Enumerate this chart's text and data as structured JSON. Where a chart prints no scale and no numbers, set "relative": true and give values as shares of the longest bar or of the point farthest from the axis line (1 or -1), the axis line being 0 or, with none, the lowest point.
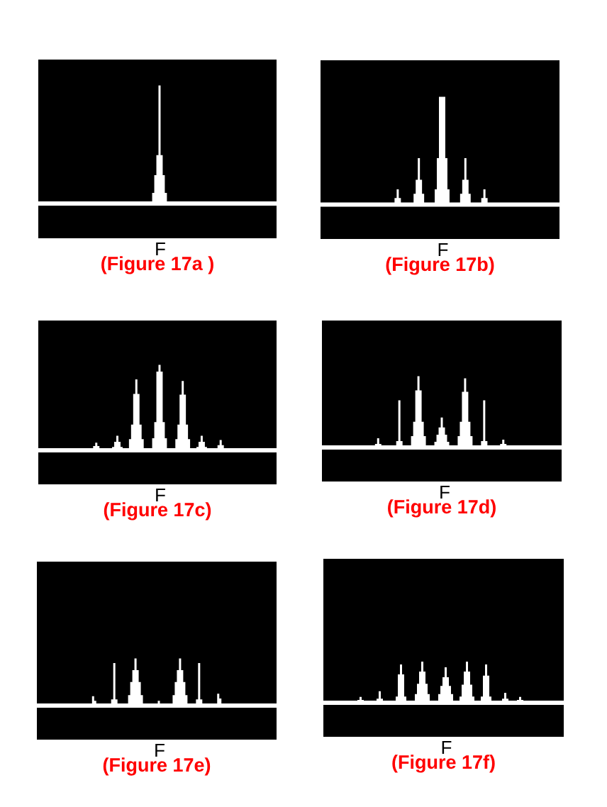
{
  "chart_data": [
    {
      "type": "area",
      "title": "(Figure 17a )",
      "xlabel": "F",
      "relative": true,
      "color": "#ffffff",
      "categories": [
        null,
        null,
        null,
        null,
        null,
        null,
        null,
        null,
        null,
        null,
        null,
        null,
        null,
        null,
        null,
        null,
        null,
        null,
        null,
        null,
        null,
        null,
        null,
        null,
        null,
        null,
        null,
        null,
        null,
        null,
        null,
        null,
        null,
        null,
        null,
        null,
        null,
        null,
        null,
        null,
        null,
        null,
        null,
        null,
        null,
        null,
        null,
        null,
        null,
        null,
        null,
        null,
        null,
        null,
        null,
        null,
        null,
        null,
        null,
        null,
        null,
        null,
        null,
        null,
        null,
        null,
        null,
        null,
        null,
        null,
        null,
        null,
        null,
        null,
        null,
        null,
        null,
        null,
        null,
        null,
        null,
        null,
        null,
        null,
        null,
        null,
        null,
        null,
        null,
        null,
        null,
        null,
        null,
        null,
        null,
        null,
        null,
        null,
        null,
        null,
        null,
        null,
        null,
        null,
        null,
        null,
        null,
        null,
        null,
        null,
        null,
        null,
        null
      ],
      "values": [
        0,
        0,
        0,
        0,
        0,
        0,
        0,
        0,
        0,
        0,
        0,
        0,
        0,
        0,
        0,
        0,
        0,
        0,
        0,
        0,
        0,
        0,
        0,
        0,
        0,
        0,
        0,
        0,
        0,
        0,
        0,
        0,
        0,
        0,
        0,
        0,
        0,
        0,
        0,
        0,
        0,
        0,
        0,
        0,
        0,
        0,
        0,
        0,
        0,
        0,
        0,
        0,
        0,
        0,
        0.09,
        0.24,
        0.41,
        1,
        0.41,
        0.24,
        0.09,
        0,
        0,
        0,
        0,
        0,
        0,
        0,
        0,
        0,
        0,
        0,
        0,
        0,
        0,
        0,
        0,
        0,
        0,
        0,
        0,
        0,
        0,
        0,
        0,
        0,
        0,
        0,
        0,
        0,
        0,
        0,
        0,
        0,
        0,
        0,
        0,
        0,
        0,
        0,
        0,
        0,
        0,
        0,
        0,
        0,
        0,
        0,
        0,
        0,
        0,
        0,
        0
      ]
    },
    {
      "type": "area",
      "title": "(Figure 17b)",
      "xlabel": "F",
      "relative": true,
      "color": "#ffffff",
      "categories": [
        null,
        null,
        null,
        null,
        null,
        null,
        null,
        null,
        null,
        null,
        null,
        null,
        null,
        null,
        null,
        null,
        null,
        null,
        null,
        null,
        null,
        null,
        null,
        null,
        null,
        null,
        null,
        null,
        null,
        null,
        null,
        null,
        null,
        null,
        null,
        null,
        null,
        null,
        null,
        null,
        null,
        null,
        null,
        null,
        null,
        null,
        null,
        null,
        null,
        null,
        null,
        null,
        null,
        null,
        null,
        null,
        null,
        null,
        null,
        null,
        null,
        null,
        null,
        null,
        null,
        null,
        null,
        null,
        null,
        null,
        null,
        null,
        null,
        null,
        null,
        null,
        null,
        null,
        null,
        null,
        null,
        null,
        null,
        null,
        null,
        null,
        null,
        null,
        null,
        null,
        null,
        null,
        null,
        null,
        null,
        null,
        null,
        null,
        null,
        null,
        null,
        null,
        null,
        null,
        null,
        null,
        null,
        null,
        null,
        null,
        null,
        null,
        null
      ],
      "values": [
        0,
        0,
        0,
        0,
        0,
        0,
        0,
        0,
        0,
        0,
        0,
        0,
        0,
        0,
        0,
        0,
        0,
        0,
        0,
        0,
        0,
        0,
        0,
        0,
        0,
        0,
        0,
        0,
        0,
        0,
        0,
        0,
        0,
        0,
        0,
        0.06,
        0.14,
        0.06,
        0,
        0,
        0,
        0,
        0,
        0,
        0.1,
        0.23,
        0.43,
        0.23,
        0.1,
        0,
        0,
        0,
        0,
        0,
        0.14,
        0.43,
        1,
        1,
        1,
        0.43,
        0.14,
        0,
        0,
        0,
        0,
        0,
        0.1,
        0.23,
        0.43,
        0.23,
        0.1,
        0,
        0,
        0,
        0,
        0,
        0.06,
        0.14,
        0.06,
        0,
        0,
        0,
        0,
        0,
        0,
        0,
        0,
        0,
        0,
        0,
        0,
        0,
        0,
        0,
        0,
        0,
        0,
        0,
        0,
        0,
        0,
        0,
        0,
        0,
        0,
        0,
        0,
        0,
        0,
        0,
        0,
        0,
        0
      ]
    },
    {
      "type": "area",
      "title": "(Figure 17c)",
      "xlabel": "F",
      "relative": true,
      "color": "#ffffff",
      "categories": [
        null,
        null,
        null,
        null,
        null,
        null,
        null,
        null,
        null,
        null,
        null,
        null,
        null,
        null,
        null,
        null,
        null,
        null,
        null,
        null,
        null,
        null,
        null,
        null,
        null,
        null,
        null,
        null,
        null,
        null,
        null,
        null,
        null,
        null,
        null,
        null,
        null,
        null,
        null,
        null,
        null,
        null,
        null,
        null,
        null,
        null,
        null,
        null,
        null,
        null,
        null,
        null,
        null,
        null,
        null,
        null,
        null,
        null,
        null,
        null,
        null,
        null,
        null,
        null,
        null,
        null,
        null,
        null,
        null,
        null,
        null,
        null,
        null,
        null,
        null,
        null,
        null,
        null,
        null,
        null,
        null,
        null,
        null,
        null,
        null,
        null,
        null,
        null,
        null,
        null,
        null,
        null,
        null,
        null,
        null,
        null,
        null,
        null,
        null,
        null,
        null,
        null,
        null,
        null,
        null,
        null,
        null,
        null,
        null,
        null,
        null,
        null,
        null
      ],
      "values": [
        0,
        0,
        0,
        0,
        0,
        0,
        0,
        0,
        0,
        0,
        0,
        0,
        0,
        0,
        0,
        0,
        0,
        0,
        0,
        0,
        0,
        0,
        0,
        0,
        0,
        0,
        0.05,
        0.09,
        0.05,
        0,
        0,
        0,
        0,
        0,
        0,
        0.04,
        0.1,
        0.17,
        0.1,
        0.04,
        0,
        0,
        0,
        0.13,
        0.3,
        0.66,
        0.83,
        0.66,
        0.3,
        0.13,
        0,
        0,
        0,
        0,
        0.14,
        0.33,
        0.92,
        1,
        0.92,
        0.33,
        0.14,
        0,
        0,
        0,
        0,
        0.13,
        0.3,
        0.65,
        0.81,
        0.65,
        0.3,
        0.13,
        0,
        0,
        0,
        0.04,
        0.1,
        0.17,
        0.1,
        0.04,
        0,
        0,
        0,
        0,
        0,
        0.06,
        0.12,
        0.06,
        0,
        0,
        0,
        0,
        0,
        0,
        0,
        0,
        0,
        0,
        0,
        0,
        0,
        0,
        0,
        0,
        0,
        0,
        0,
        0,
        0,
        0,
        0,
        0,
        0
      ]
    },
    {
      "type": "area",
      "title": "(Figure 17d)",
      "xlabel": "F",
      "relative": true,
      "color": "#ffffff",
      "categories": [
        null,
        null,
        null,
        null,
        null,
        null,
        null,
        null,
        null,
        null,
        null,
        null,
        null,
        null,
        null,
        null,
        null,
        null,
        null,
        null,
        null,
        null,
        null,
        null,
        null,
        null,
        null,
        null,
        null,
        null,
        null,
        null,
        null,
        null,
        null,
        null,
        null,
        null,
        null,
        null,
        null,
        null,
        null,
        null,
        null,
        null,
        null,
        null,
        null,
        null,
        null,
        null,
        null,
        null,
        null,
        null,
        null,
        null,
        null,
        null,
        null,
        null,
        null,
        null,
        null,
        null,
        null,
        null,
        null,
        null,
        null,
        null,
        null,
        null,
        null,
        null,
        null,
        null,
        null,
        null,
        null,
        null,
        null,
        null,
        null,
        null,
        null,
        null,
        null,
        null,
        null,
        null,
        null,
        null,
        null,
        null,
        null,
        null,
        null,
        null,
        null,
        null,
        null,
        null,
        null,
        null,
        null,
        null,
        null,
        null,
        null,
        null,
        null
      ],
      "values": [
        0,
        0,
        0,
        0,
        0,
        0,
        0,
        0,
        0,
        0,
        0,
        0,
        0,
        0,
        0,
        0,
        0,
        0,
        0,
        0,
        0,
        0,
        0,
        0,
        0,
        0.05,
        0.13,
        0.05,
        0,
        0,
        0,
        0,
        0,
        0,
        0.03,
        0.09,
        0.66,
        0.09,
        0.03,
        0,
        0,
        0,
        0.16,
        0.36,
        0.8,
        1,
        0.8,
        0.36,
        0.16,
        0,
        0,
        0,
        0,
        0.08,
        0.18,
        0.28,
        0.42,
        0.28,
        0.18,
        0.08,
        0,
        0,
        0,
        0,
        0.16,
        0.36,
        0.78,
        0.97,
        0.78,
        0.36,
        0.16,
        0,
        0,
        0,
        0.03,
        0.09,
        0.66,
        0.09,
        0.03,
        0,
        0,
        0,
        0,
        0,
        0.05,
        0.11,
        0.05,
        0,
        0,
        0,
        0,
        0,
        0,
        0,
        0,
        0,
        0,
        0,
        0,
        0,
        0,
        0,
        0,
        0,
        0,
        0,
        0,
        0,
        0,
        0,
        0,
        0,
        0
      ]
    },
    {
      "type": "area",
      "title": "(Figure 17e)",
      "xlabel": "F",
      "relative": true,
      "color": "#ffffff",
      "categories": [
        null,
        null,
        null,
        null,
        null,
        null,
        null,
        null,
        null,
        null,
        null,
        null,
        null,
        null,
        null,
        null,
        null,
        null,
        null,
        null,
        null,
        null,
        null,
        null,
        null,
        null,
        null,
        null,
        null,
        null,
        null,
        null,
        null,
        null,
        null,
        null,
        null,
        null,
        null,
        null,
        null,
        null,
        null,
        null,
        null,
        null,
        null,
        null,
        null,
        null,
        null,
        null,
        null,
        null,
        null,
        null,
        null,
        null,
        null,
        null,
        null,
        null,
        null,
        null,
        null,
        null,
        null,
        null,
        null,
        null,
        null,
        null,
        null,
        null,
        null,
        null,
        null,
        null,
        null,
        null,
        null,
        null,
        null,
        null,
        null,
        null,
        null,
        null,
        null,
        null,
        null,
        null,
        null,
        null,
        null,
        null,
        null,
        null,
        null,
        null,
        null,
        null,
        null,
        null,
        null,
        null,
        null,
        null,
        null,
        null,
        null,
        null,
        null
      ],
      "values": [
        0,
        0,
        0,
        0,
        0,
        0,
        0,
        0,
        0,
        0,
        0,
        0,
        0,
        0,
        0,
        0,
        0,
        0,
        0,
        0,
        0,
        0,
        0,
        0,
        0,
        0.03,
        0.2,
        0.1,
        0,
        0,
        0,
        0,
        0,
        0,
        0.04,
        0.13,
        0.9,
        0.13,
        0.04,
        0,
        0,
        0,
        0,
        0.22,
        0.5,
        0.75,
        1,
        0.75,
        0.5,
        0.22,
        0,
        0,
        0,
        0,
        0,
        0,
        0.04,
        0.1,
        0.04,
        0,
        0,
        0,
        0,
        0,
        0.22,
        0.5,
        0.75,
        1,
        0.75,
        0.5,
        0.22,
        0,
        0,
        0,
        0.04,
        0.13,
        0.9,
        0.13,
        0.04,
        0,
        0,
        0,
        0,
        0,
        0.04,
        0.25,
        0.15,
        0,
        0,
        0,
        0,
        0,
        0,
        0,
        0,
        0,
        0,
        0,
        0,
        0,
        0,
        0,
        0,
        0,
        0,
        0,
        0,
        0,
        0,
        0,
        0,
        0,
        0
      ]
    },
    {
      "type": "area",
      "title": "(Figure 17f)",
      "xlabel": "F",
      "relative": true,
      "color": "#ffffff",
      "categories": [
        null,
        null,
        null,
        null,
        null,
        null,
        null,
        null,
        null,
        null,
        null,
        null,
        null,
        null,
        null,
        null,
        null,
        null,
        null,
        null,
        null,
        null,
        null,
        null,
        null,
        null,
        null,
        null,
        null,
        null,
        null,
        null,
        null,
        null,
        null,
        null,
        null,
        null,
        null,
        null,
        null,
        null,
        null,
        null,
        null,
        null,
        null,
        null,
        null,
        null,
        null,
        null,
        null,
        null,
        null,
        null,
        null,
        null,
        null,
        null,
        null,
        null,
        null,
        null,
        null,
        null,
        null,
        null,
        null,
        null,
        null,
        null,
        null,
        null,
        null,
        null,
        null,
        null,
        null,
        null,
        null,
        null,
        null,
        null,
        null,
        null,
        null,
        null,
        null,
        null,
        null,
        null,
        null,
        null,
        null,
        null,
        null,
        null,
        null,
        null,
        null,
        null,
        null,
        null,
        null,
        null,
        null,
        null,
        null,
        null,
        null,
        null,
        null
      ],
      "values": [
        0,
        0,
        0,
        0,
        0,
        0,
        0,
        0,
        0,
        0,
        0,
        0,
        0,
        0,
        0,
        0,
        0.07,
        0.14,
        0.07,
        0,
        0,
        0,
        0,
        0,
        0,
        0.1,
        0.28,
        0.1,
        0,
        0,
        0,
        0,
        0,
        0,
        0.15,
        0.69,
        0.93,
        0.69,
        0.15,
        0,
        0,
        0,
        0,
        0.21,
        0.46,
        0.76,
        1,
        0.76,
        0.46,
        0.21,
        0,
        0,
        0,
        0,
        0.21,
        0.41,
        0.62,
        0.86,
        0.62,
        0.41,
        0.21,
        0,
        0,
        0,
        0.15,
        0.44,
        0.76,
        1,
        0.76,
        0.44,
        0.15,
        0,
        0,
        0,
        0.15,
        0.66,
        0.93,
        0.66,
        0.15,
        0,
        0,
        0,
        0,
        0,
        0.1,
        0.24,
        0.1,
        0,
        0,
        0,
        0,
        0.07,
        0.14,
        0.07,
        0,
        0,
        0,
        0,
        0,
        0,
        0,
        0,
        0,
        0,
        0,
        0,
        0,
        0,
        0,
        0,
        0,
        0,
        0
      ]
    }
  ]
}
